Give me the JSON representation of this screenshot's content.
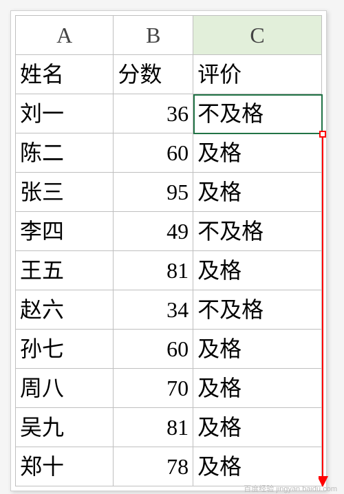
{
  "grid": {
    "column_headers": [
      "A",
      "B",
      "C"
    ],
    "selected_column_index": 2,
    "header_row": [
      "姓名",
      "分数",
      "评价"
    ],
    "rows": [
      {
        "name": "刘一",
        "score": 36,
        "eval": "不及格"
      },
      {
        "name": "陈二",
        "score": 60,
        "eval": "及格"
      },
      {
        "name": "张三",
        "score": 95,
        "eval": "及格"
      },
      {
        "name": "李四",
        "score": 49,
        "eval": "不及格"
      },
      {
        "name": "王五",
        "score": 81,
        "eval": "及格"
      },
      {
        "name": "赵六",
        "score": 34,
        "eval": "不及格"
      },
      {
        "name": "孙七",
        "score": 60,
        "eval": "及格"
      },
      {
        "name": "周八",
        "score": 70,
        "eval": "及格"
      },
      {
        "name": "吴九",
        "score": 81,
        "eval": "及格"
      },
      {
        "name": "郑十",
        "score": 78,
        "eval": "及格"
      }
    ],
    "selected_cell": {
      "row": 1,
      "col": 2
    },
    "selection_color": "#217346",
    "header_selected_bg": "#e2efda",
    "fill_handle_color": "#ff0000",
    "arrow_color": "#ff0000",
    "border_color": "#bfbfbf",
    "font_size": 32,
    "header_font_color": "#444444"
  },
  "watermark": "百度经验 jingyan.baidu.com"
}
